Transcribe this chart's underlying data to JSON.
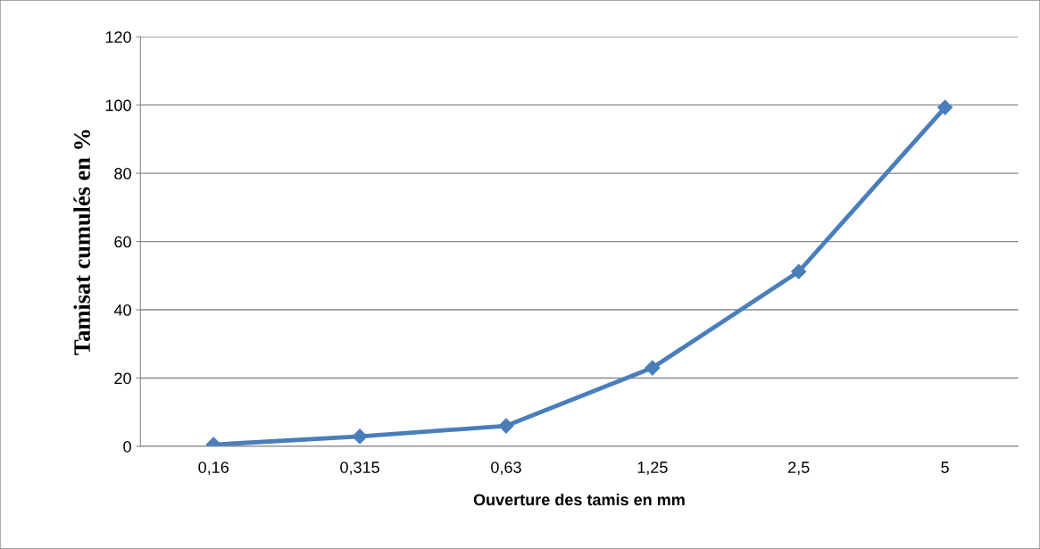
{
  "chart_data": {
    "type": "line",
    "xlabel": "Ouverture des tamis en mm",
    "ylabel": "Tamisat cumulés en %",
    "categories": [
      "0,16",
      "0,315",
      "0,63",
      "1,25",
      "2,5",
      "5"
    ],
    "series": [
      {
        "color": "#4a7ebb",
        "values": [
          0.5,
          2.9,
          6.0,
          23.0,
          51.2,
          99.3
        ]
      }
    ],
    "ylim": [
      0,
      120
    ],
    "yticks": [
      0,
      20,
      40,
      60,
      80,
      100,
      120
    ],
    "grid": "y",
    "legend": false,
    "marker": "diamond",
    "line_style": "solid"
  }
}
